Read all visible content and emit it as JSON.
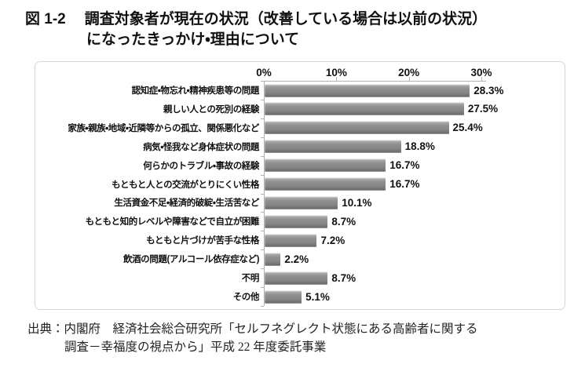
{
  "title": {
    "figure_label": "図 1-2",
    "line1": "調査対象者が現在の状況（改善している場合は以前の状況）",
    "line2": "になったきっかけ・理由について"
  },
  "chart_data": {
    "type": "bar",
    "orientation": "horizontal",
    "categories": [
      "認知症・物忘れ・精神疾患等の問題",
      "親しい人との死別の経験",
      "家族・親族・地域・近隣等からの孤立、関係悪化など",
      "病気・怪我など身体症状の問題",
      "何らかのトラブル・事故の経験",
      "もともと人との交流がとりにくい性格",
      "生活資金不足・経済的破綻・生活苦など",
      "もともと知的レベルや障害などで自立が困難",
      "もともと片づけが苦手な性格",
      "飲酒の問題(アルコール依存症など)",
      "不明",
      "その他"
    ],
    "values": [
      28.3,
      27.5,
      25.4,
      18.8,
      16.7,
      16.7,
      10.1,
      8.7,
      7.2,
      2.2,
      8.7,
      5.1
    ],
    "value_labels": [
      "28.3%",
      "27.5%",
      "25.4%",
      "18.8%",
      "16.7%",
      "16.7%",
      "10.1%",
      "8.7%",
      "7.2%",
      "2.2%",
      "8.7%",
      "5.1%"
    ],
    "x_ticks": [
      "0%",
      "10%",
      "20%",
      "30%"
    ],
    "xlim": [
      0,
      30
    ],
    "tick_step": 10,
    "grid": false,
    "legend": "none",
    "bar_color": "#8d8d8d",
    "axis_color": "#b3b3b3"
  },
  "source": {
    "line1": "出典：内閣府　経済社会総合研究所「セルフネグレクト状態にある高齢者に関する",
    "line2": "調査－幸福度の視点から」平成 22 年度委託事業"
  }
}
